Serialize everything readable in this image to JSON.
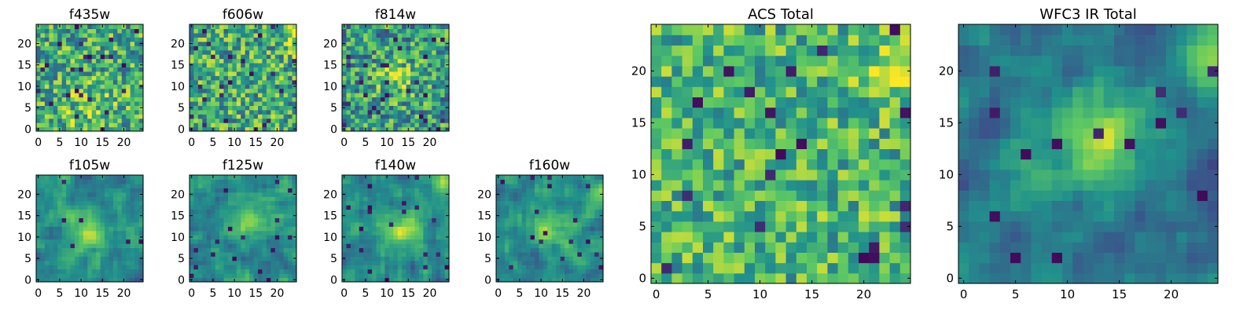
{
  "colormap": [
    "#440154",
    "#3b528b",
    "#21918c",
    "#5ec962",
    "#fde725"
  ],
  "chart_data": [
    {
      "type": "heatmap",
      "title": "f435w",
      "xlim": [
        0,
        24
      ],
      "ylim": [
        0,
        24
      ],
      "x_ticks": [
        "0",
        "5",
        "10",
        "15",
        "20"
      ],
      "y_ticks": [
        "0",
        "5",
        "10",
        "15",
        "20"
      ],
      "grid_size": 25,
      "seed": 11,
      "smooth": 0,
      "base": 0.62,
      "noise": 0.32,
      "blobs": [
        [
          12,
          5,
          4,
          0.15
        ]
      ],
      "holes": 0.04
    },
    {
      "type": "heatmap",
      "title": "f606w",
      "xlim": [
        0,
        24
      ],
      "ylim": [
        0,
        24
      ],
      "x_ticks": [
        "0",
        "5",
        "10",
        "15",
        "20"
      ],
      "y_ticks": [
        "0",
        "5",
        "10",
        "15",
        "20"
      ],
      "grid_size": 25,
      "seed": 23,
      "smooth": 0,
      "base": 0.62,
      "noise": 0.32,
      "blobs": [
        [
          24,
          21,
          2,
          0.25
        ]
      ],
      "holes": 0.04
    },
    {
      "type": "heatmap",
      "title": "f814w",
      "xlim": [
        0,
        24
      ],
      "ylim": [
        0,
        24
      ],
      "x_ticks": [
        "0",
        "5",
        "10",
        "15",
        "20"
      ],
      "y_ticks": [
        "0",
        "5",
        "10",
        "15",
        "20"
      ],
      "grid_size": 25,
      "seed": 37,
      "smooth": 0,
      "base": 0.55,
      "noise": 0.32,
      "blobs": [
        [
          12,
          12,
          3,
          0.3
        ]
      ],
      "holes": 0.04
    },
    {
      "type": "heatmap",
      "title": "f105w",
      "xlim": [
        0,
        24
      ],
      "ylim": [
        0,
        24
      ],
      "x_ticks": [
        "0",
        "5",
        "10",
        "15",
        "20"
      ],
      "y_ticks": [
        "0",
        "5",
        "10",
        "15",
        "20"
      ],
      "grid_size": 25,
      "seed": 41,
      "smooth": 1,
      "base": 0.48,
      "noise": 0.35,
      "blobs": [
        [
          12,
          11,
          3,
          0.4
        ]
      ],
      "holes": 0.02
    },
    {
      "type": "heatmap",
      "title": "f125w",
      "xlim": [
        0,
        24
      ],
      "ylim": [
        0,
        24
      ],
      "x_ticks": [
        "0",
        "5",
        "10",
        "15",
        "20"
      ],
      "y_ticks": [
        "0",
        "5",
        "10",
        "15",
        "20"
      ],
      "grid_size": 25,
      "seed": 53,
      "smooth": 1,
      "base": 0.48,
      "noise": 0.35,
      "blobs": [
        [
          14,
          14,
          3,
          0.3
        ],
        [
          24,
          21,
          2,
          0.3
        ]
      ],
      "holes": 0.02
    },
    {
      "type": "heatmap",
      "title": "f140w",
      "xlim": [
        0,
        24
      ],
      "ylim": [
        0,
        24
      ],
      "x_ticks": [
        "0",
        "5",
        "10",
        "15",
        "20"
      ],
      "y_ticks": [
        "0",
        "5",
        "10",
        "15",
        "20"
      ],
      "grid_size": 25,
      "seed": 67,
      "smooth": 1,
      "base": 0.48,
      "noise": 0.35,
      "blobs": [
        [
          14,
          12,
          3,
          0.35
        ],
        [
          23,
          22,
          2,
          0.3
        ]
      ],
      "holes": 0.02
    },
    {
      "type": "heatmap",
      "title": "f160w",
      "xlim": [
        0,
        24
      ],
      "ylim": [
        0,
        24
      ],
      "x_ticks": [
        "0",
        "5",
        "10",
        "15",
        "20"
      ],
      "y_ticks": [
        "0",
        "5",
        "10",
        "15",
        "20"
      ],
      "grid_size": 25,
      "seed": 79,
      "smooth": 1,
      "base": 0.48,
      "noise": 0.35,
      "blobs": [
        [
          12,
          12,
          3,
          0.35
        ],
        [
          24,
          21,
          2,
          0.3
        ]
      ],
      "holes": 0.02
    },
    {
      "type": "heatmap",
      "title": "ACS Total",
      "xlim": [
        0,
        24
      ],
      "ylim": [
        0,
        24
      ],
      "x_ticks": [
        "0",
        "5",
        "10",
        "15",
        "20"
      ],
      "y_ticks": [
        "0",
        "5",
        "10",
        "15",
        "20"
      ],
      "grid_size": 25,
      "seed": 97,
      "smooth": 0,
      "base": 0.66,
      "noise": 0.26,
      "blobs": [
        [
          23,
          20,
          2,
          0.25
        ]
      ],
      "holes": 0.035
    },
    {
      "type": "heatmap",
      "title": "WFC3 IR Total",
      "xlim": [
        0,
        24
      ],
      "ylim": [
        0,
        24
      ],
      "x_ticks": [
        "0",
        "5",
        "10",
        "15",
        "20"
      ],
      "y_ticks": [
        "0",
        "5",
        "10",
        "15",
        "20"
      ],
      "grid_size": 25,
      "seed": 113,
      "smooth": 1,
      "base": 0.4,
      "noise": 0.3,
      "blobs": [
        [
          13,
          13,
          3,
          0.5
        ],
        [
          24,
          21,
          2,
          0.5
        ],
        [
          6,
          11,
          2,
          0.15
        ]
      ],
      "holes": 0.03
    }
  ]
}
